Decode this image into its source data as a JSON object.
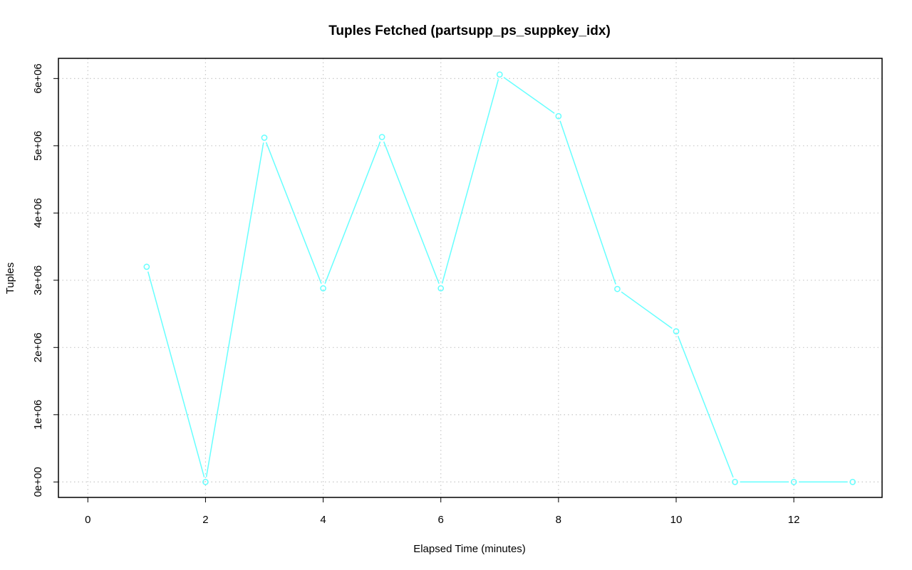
{
  "chart_data": {
    "type": "line",
    "title": "Tuples Fetched (partsupp_ps_suppkey_idx)",
    "xlabel": "Elapsed Time (minutes)",
    "ylabel": "Tuples",
    "x_ticks": [
      "0",
      "2",
      "4",
      "6",
      "8",
      "10",
      "12"
    ],
    "y_ticks": [
      "0e+00",
      "1e+06",
      "2e+06",
      "3e+06",
      "4e+06",
      "5e+06",
      "6e+06"
    ],
    "xlim": [
      -0.5,
      13.5
    ],
    "ylim": [
      -230000,
      6300000
    ],
    "grid": true,
    "series": [
      {
        "color": "#66ffff",
        "marker": "circle",
        "x": [
          1,
          2,
          3,
          4,
          5,
          6,
          7,
          8,
          9,
          10,
          11,
          12,
          13
        ],
        "y": [
          3200000,
          0,
          5120000,
          2880000,
          5130000,
          2880000,
          6060000,
          5440000,
          2870000,
          2240000,
          0,
          0,
          0
        ]
      }
    ]
  }
}
